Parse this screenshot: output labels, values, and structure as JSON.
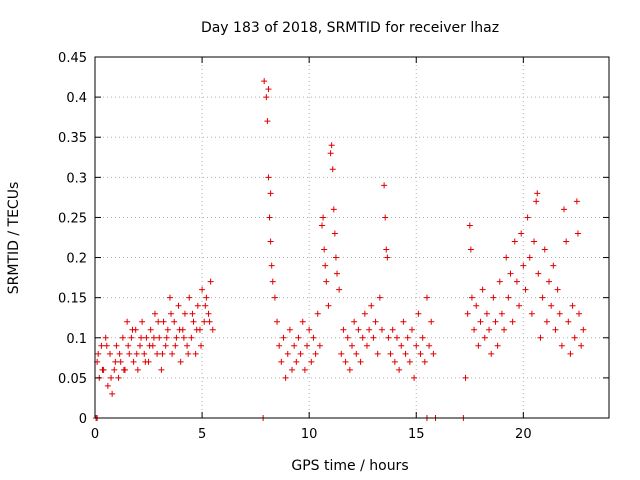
{
  "chart_data": {
    "type": "scatter",
    "title": "Day 183 of 2018, SRMTID for receiver lhaz",
    "xlabel": "GPS time / hours",
    "ylabel": "SRMTID / TECUs",
    "xlim": [
      0,
      24
    ],
    "ylim": [
      0,
      0.45
    ],
    "xticks": [
      0,
      5,
      10,
      15,
      20
    ],
    "yticks": [
      0,
      0.05,
      0.1,
      0.15,
      0.2,
      0.25,
      0.3,
      0.35,
      0.4,
      0.45
    ],
    "ytick_labels": [
      "0",
      "0.05",
      "0.1",
      "0.15",
      "0.2",
      "0.25",
      "0.3",
      "0.35",
      "0.4",
      "0.45"
    ],
    "xtick_labels": [
      "0",
      "5",
      "10",
      "15",
      "20"
    ],
    "grid": true,
    "marker": "+",
    "series": [
      {
        "name": "SRMTID",
        "color": "#e00000",
        "points": [
          [
            0.1,
            0.07
          ],
          [
            0.2,
            0.05
          ],
          [
            0.3,
            0.09
          ],
          [
            0.4,
            0.06
          ],
          [
            0.5,
            0.1
          ],
          [
            0.6,
            0.04
          ],
          [
            0.7,
            0.08
          ],
          [
            0.8,
            0.03
          ],
          [
            0.9,
            0.06
          ],
          [
            1.0,
            0.09
          ],
          [
            1.1,
            0.05
          ],
          [
            1.2,
            0.07
          ],
          [
            1.3,
            0.1
          ],
          [
            1.4,
            0.06
          ],
          [
            1.5,
            0.12
          ],
          [
            1.6,
            0.08
          ],
          [
            1.7,
            0.1
          ],
          [
            1.8,
            0.07
          ],
          [
            1.9,
            0.11
          ],
          [
            2.0,
            0.06
          ],
          [
            2.1,
            0.09
          ],
          [
            2.2,
            0.12
          ],
          [
            2.3,
            0.08
          ],
          [
            2.4,
            0.1
          ],
          [
            2.5,
            0.07
          ],
          [
            2.6,
            0.11
          ],
          [
            2.7,
            0.09
          ],
          [
            2.8,
            0.13
          ],
          [
            2.9,
            0.08
          ],
          [
            3.0,
            0.1
          ],
          [
            3.1,
            0.06
          ],
          [
            3.2,
            0.12
          ],
          [
            3.3,
            0.09
          ],
          [
            3.4,
            0.11
          ],
          [
            3.5,
            0.15
          ],
          [
            3.6,
            0.08
          ],
          [
            3.7,
            0.12
          ],
          [
            3.8,
            0.1
          ],
          [
            3.9,
            0.14
          ],
          [
            4.0,
            0.07
          ],
          [
            4.1,
            0.11
          ],
          [
            4.2,
            0.13
          ],
          [
            4.3,
            0.09
          ],
          [
            4.4,
            0.15
          ],
          [
            4.5,
            0.1
          ],
          [
            4.6,
            0.12
          ],
          [
            4.7,
            0.08
          ],
          [
            4.8,
            0.14
          ],
          [
            4.9,
            0.11
          ],
          [
            5.0,
            0.16
          ],
          [
            5.1,
            0.12
          ],
          [
            5.2,
            0.15
          ],
          [
            5.3,
            0.13
          ],
          [
            5.4,
            0.17
          ],
          [
            5.5,
            0.11
          ],
          [
            0.15,
            0.08
          ],
          [
            0.35,
            0.06
          ],
          [
            0.55,
            0.09
          ],
          [
            0.75,
            0.05
          ],
          [
            0.95,
            0.07
          ],
          [
            1.15,
            0.08
          ],
          [
            1.35,
            0.06
          ],
          [
            1.55,
            0.09
          ],
          [
            1.75,
            0.11
          ],
          [
            1.95,
            0.08
          ],
          [
            2.15,
            0.1
          ],
          [
            2.35,
            0.07
          ],
          [
            2.55,
            0.09
          ],
          [
            2.75,
            0.1
          ],
          [
            2.95,
            0.12
          ],
          [
            3.15,
            0.08
          ],
          [
            3.35,
            0.1
          ],
          [
            3.55,
            0.13
          ],
          [
            3.75,
            0.09
          ],
          [
            3.95,
            0.11
          ],
          [
            4.15,
            0.1
          ],
          [
            4.35,
            0.08
          ],
          [
            4.55,
            0.13
          ],
          [
            4.75,
            0.11
          ],
          [
            4.95,
            0.09
          ],
          [
            5.15,
            0.14
          ],
          [
            5.35,
            0.12
          ],
          [
            0.05,
            0.0
          ],
          [
            0.1,
            0.0
          ],
          [
            7.9,
            0.42
          ],
          [
            8.0,
            0.4
          ],
          [
            8.05,
            0.37
          ],
          [
            8.1,
            0.41
          ],
          [
            8.1,
            0.3
          ],
          [
            8.15,
            0.25
          ],
          [
            8.2,
            0.28
          ],
          [
            8.2,
            0.22
          ],
          [
            8.25,
            0.19
          ],
          [
            8.3,
            0.17
          ],
          [
            8.4,
            0.15
          ],
          [
            8.5,
            0.12
          ],
          [
            8.6,
            0.09
          ],
          [
            8.7,
            0.07
          ],
          [
            8.8,
            0.1
          ],
          [
            8.9,
            0.05
          ],
          [
            9.0,
            0.08
          ],
          [
            9.1,
            0.11
          ],
          [
            9.2,
            0.06
          ],
          [
            9.3,
            0.09
          ],
          [
            9.4,
            0.07
          ],
          [
            9.5,
            0.1
          ],
          [
            9.6,
            0.08
          ],
          [
            9.7,
            0.12
          ],
          [
            9.8,
            0.06
          ],
          [
            9.9,
            0.09
          ],
          [
            10.0,
            0.11
          ],
          [
            10.1,
            0.07
          ],
          [
            10.2,
            0.1
          ],
          [
            10.3,
            0.08
          ],
          [
            10.4,
            0.13
          ],
          [
            10.5,
            0.09
          ],
          [
            10.6,
            0.24
          ],
          [
            10.65,
            0.25
          ],
          [
            10.7,
            0.21
          ],
          [
            10.75,
            0.19
          ],
          [
            10.8,
            0.17
          ],
          [
            10.9,
            0.14
          ],
          [
            11.0,
            0.33
          ],
          [
            11.05,
            0.34
          ],
          [
            11.1,
            0.31
          ],
          [
            11.15,
            0.26
          ],
          [
            11.2,
            0.23
          ],
          [
            11.25,
            0.2
          ],
          [
            11.3,
            0.18
          ],
          [
            11.4,
            0.16
          ],
          [
            11.5,
            0.08
          ],
          [
            11.6,
            0.11
          ],
          [
            11.7,
            0.07
          ],
          [
            11.8,
            0.1
          ],
          [
            11.9,
            0.06
          ],
          [
            12.0,
            0.09
          ],
          [
            12.1,
            0.12
          ],
          [
            12.2,
            0.08
          ],
          [
            12.3,
            0.11
          ],
          [
            12.4,
            0.07
          ],
          [
            12.5,
            0.1
          ],
          [
            12.6,
            0.13
          ],
          [
            12.7,
            0.09
          ],
          [
            12.8,
            0.11
          ],
          [
            12.9,
            0.14
          ],
          [
            13.0,
            0.1
          ],
          [
            13.1,
            0.12
          ],
          [
            13.2,
            0.08
          ],
          [
            13.3,
            0.15
          ],
          [
            13.4,
            0.11
          ],
          [
            13.5,
            0.29
          ],
          [
            13.55,
            0.25
          ],
          [
            13.6,
            0.21
          ],
          [
            13.65,
            0.2
          ],
          [
            13.7,
            0.1
          ],
          [
            13.8,
            0.08
          ],
          [
            13.9,
            0.11
          ],
          [
            14.0,
            0.07
          ],
          [
            14.1,
            0.1
          ],
          [
            14.2,
            0.06
          ],
          [
            14.3,
            0.09
          ],
          [
            14.4,
            0.12
          ],
          [
            14.5,
            0.08
          ],
          [
            14.6,
            0.1
          ],
          [
            14.7,
            0.07
          ],
          [
            14.8,
            0.11
          ],
          [
            14.9,
            0.05
          ],
          [
            15.0,
            0.09
          ],
          [
            15.1,
            0.13
          ],
          [
            15.2,
            0.08
          ],
          [
            15.3,
            0.1
          ],
          [
            15.4,
            0.07
          ],
          [
            15.5,
            0.15
          ],
          [
            15.6,
            0.09
          ],
          [
            15.7,
            0.12
          ],
          [
            15.8,
            0.08
          ],
          [
            15.5,
            0.0
          ],
          [
            15.9,
            0.0
          ],
          [
            7.85,
            0.0
          ],
          [
            17.2,
            0.0
          ],
          [
            17.3,
            0.05
          ],
          [
            17.4,
            0.13
          ],
          [
            17.5,
            0.24
          ],
          [
            17.55,
            0.21
          ],
          [
            17.6,
            0.15
          ],
          [
            17.7,
            0.11
          ],
          [
            17.8,
            0.14
          ],
          [
            17.9,
            0.09
          ],
          [
            18.0,
            0.12
          ],
          [
            18.1,
            0.16
          ],
          [
            18.2,
            0.1
          ],
          [
            18.3,
            0.13
          ],
          [
            18.4,
            0.11
          ],
          [
            18.5,
            0.08
          ],
          [
            18.6,
            0.15
          ],
          [
            18.7,
            0.12
          ],
          [
            18.8,
            0.09
          ],
          [
            18.9,
            0.17
          ],
          [
            19.0,
            0.13
          ],
          [
            19.1,
            0.11
          ],
          [
            19.2,
            0.2
          ],
          [
            19.3,
            0.15
          ],
          [
            19.4,
            0.18
          ],
          [
            19.5,
            0.12
          ],
          [
            19.6,
            0.22
          ],
          [
            19.7,
            0.17
          ],
          [
            19.8,
            0.14
          ],
          [
            19.9,
            0.23
          ],
          [
            20.0,
            0.19
          ],
          [
            20.1,
            0.16
          ],
          [
            20.2,
            0.25
          ],
          [
            20.3,
            0.2
          ],
          [
            20.4,
            0.13
          ],
          [
            20.5,
            0.22
          ],
          [
            20.6,
            0.27
          ],
          [
            20.65,
            0.28
          ],
          [
            20.7,
            0.18
          ],
          [
            20.8,
            0.1
          ],
          [
            20.9,
            0.15
          ],
          [
            21.0,
            0.21
          ],
          [
            21.1,
            0.12
          ],
          [
            21.2,
            0.17
          ],
          [
            21.3,
            0.14
          ],
          [
            21.4,
            0.19
          ],
          [
            21.5,
            0.11
          ],
          [
            21.6,
            0.16
          ],
          [
            21.7,
            0.13
          ],
          [
            21.8,
            0.09
          ],
          [
            21.9,
            0.26
          ],
          [
            22.0,
            0.22
          ],
          [
            22.1,
            0.12
          ],
          [
            22.2,
            0.08
          ],
          [
            22.3,
            0.14
          ],
          [
            22.4,
            0.1
          ],
          [
            22.5,
            0.27
          ],
          [
            22.55,
            0.23
          ],
          [
            22.6,
            0.13
          ],
          [
            22.7,
            0.09
          ],
          [
            22.8,
            0.11
          ]
        ]
      }
    ]
  }
}
